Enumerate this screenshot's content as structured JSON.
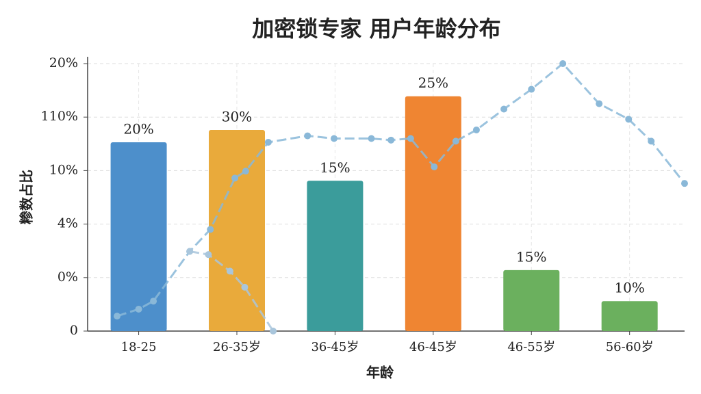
{
  "chart_data": {
    "type": "bar",
    "title": "加密锁专家 用户年龄分布",
    "x_label": "年龄",
    "y_label": "糁数占比",
    "categories": [
      "18-25",
      "26-35岁",
      "36-45岁",
      "46-45岁",
      "46-55岁",
      "56-60岁"
    ],
    "values": [
      3.53,
      3.76,
      2.81,
      4.39,
      1.14,
      0.56
    ],
    "bar_labels": [
      "20%",
      "30%",
      "15%",
      "25%",
      "15%",
      "10%"
    ],
    "colors": [
      "#4d8fcb",
      "#e9aa3b",
      "#3b9c9b",
      "#ef8532",
      "#6bb05e",
      "#6bb05e"
    ],
    "ylim": [
      0,
      5
    ],
    "yticks": [
      {
        "value": 0,
        "label": "0"
      },
      {
        "value": 1,
        "label": "0%"
      },
      {
        "value": 2,
        "label": "4%"
      },
      {
        "value": 3,
        "label": "10%"
      },
      {
        "value": 4,
        "label": "110%"
      },
      {
        "value": 5,
        "label": "20%"
      }
    ],
    "xlim": [
      -0.52,
      5.56
    ],
    "grid": true,
    "lines": [
      {
        "color": "#8ab8d8",
        "x": [
          -0.22,
          0,
          0.15,
          0.52,
          0.73,
          0.98,
          1.09,
          1.32,
          1.72,
          1.99,
          2.37,
          2.57,
          2.77,
          3.01,
          3.23,
          3.44,
          3.72,
          4.0,
          4.32,
          4.69,
          4.99,
          5.22,
          5.56
        ],
        "values": [
          0.28,
          0.41,
          0.56,
          1.49,
          1.9,
          2.86,
          2.99,
          3.53,
          3.65,
          3.6,
          3.6,
          3.57,
          3.6,
          3.07,
          3.55,
          3.76,
          4.15,
          4.52,
          5.0,
          4.25,
          3.96,
          3.55,
          2.76
        ]
      },
      {
        "color": "#a9c6dc",
        "x": [
          0.52,
          0.71,
          0.93,
          1.08,
          1.37
        ],
        "values": [
          1.49,
          1.43,
          1.12,
          0.82,
          0
        ]
      }
    ]
  }
}
